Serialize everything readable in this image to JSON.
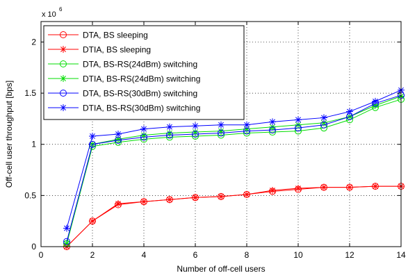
{
  "chart_data": {
    "type": "line",
    "xlabel": "Number of off-cell users",
    "ylabel": "Off-cell user throughput [bps]",
    "y_multiplier_label": "x 10",
    "y_multiplier_exponent": "6",
    "xlim": [
      0,
      14
    ],
    "ylim": [
      0,
      2.2
    ],
    "xticks": [
      0,
      2,
      4,
      6,
      8,
      10,
      12,
      14
    ],
    "yticks": [
      0,
      0.5,
      1,
      1.5,
      2
    ],
    "grid": true,
    "legend_position": "top-left",
    "x": [
      1,
      2,
      3,
      4,
      5,
      6,
      7,
      8,
      9,
      10,
      11,
      12,
      13,
      14
    ],
    "series": [
      {
        "name": "DTA, BS sleeping",
        "color": "#ff0000",
        "marker": "circle",
        "values": [
          0.0,
          0.25,
          0.41,
          0.44,
          0.46,
          0.48,
          0.49,
          0.51,
          0.54,
          0.56,
          0.58,
          0.58,
          0.59,
          0.59
        ]
      },
      {
        "name": "DTIA, BS sleeping",
        "color": "#ff0000",
        "marker": "star",
        "values": [
          0.0,
          0.25,
          0.42,
          0.44,
          0.46,
          0.48,
          0.49,
          0.51,
          0.55,
          0.57,
          0.58,
          0.58,
          0.59,
          0.59
        ]
      },
      {
        "name": "DTA, BS-RS(24dBm) switching",
        "color": "#00dd00",
        "marker": "circle",
        "values": [
          0.03,
          0.98,
          1.02,
          1.05,
          1.07,
          1.08,
          1.09,
          1.11,
          1.12,
          1.13,
          1.16,
          1.24,
          1.36,
          1.44
        ]
      },
      {
        "name": "DTIA, BS-RS(24dBm) switching",
        "color": "#00dd00",
        "marker": "star",
        "values": [
          0.03,
          1.0,
          1.05,
          1.09,
          1.11,
          1.12,
          1.13,
          1.15,
          1.17,
          1.19,
          1.21,
          1.27,
          1.38,
          1.47
        ]
      },
      {
        "name": "DTA, BS-RS(30dBm) switching",
        "color": "#0000ff",
        "marker": "circle",
        "values": [
          0.05,
          1.0,
          1.04,
          1.07,
          1.09,
          1.1,
          1.11,
          1.13,
          1.14,
          1.16,
          1.19,
          1.27,
          1.4,
          1.48
        ]
      },
      {
        "name": "DTIA, BS-RS(30dBm) switching",
        "color": "#0000ff",
        "marker": "star",
        "values": [
          0.18,
          1.08,
          1.1,
          1.15,
          1.17,
          1.18,
          1.19,
          1.19,
          1.22,
          1.24,
          1.26,
          1.32,
          1.42,
          1.53
        ]
      }
    ]
  }
}
